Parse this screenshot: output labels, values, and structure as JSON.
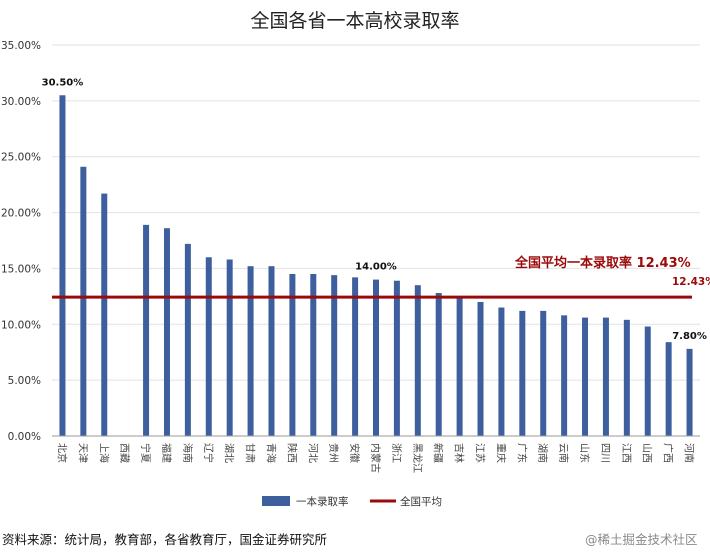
{
  "chart_data": {
    "type": "bar",
    "title": "全国各省一本高校录取率",
    "categories": [
      "北京",
      "天津",
      "上海",
      "西藏",
      "宁夏",
      "福建",
      "海南",
      "辽宁",
      "湖北",
      "甘肃",
      "青海",
      "陕西",
      "河北",
      "贵州",
      "安徽",
      "内蒙古",
      "浙江",
      "黑龙江",
      "新疆",
      "吉林",
      "江苏",
      "重庆",
      "广东",
      "湖南",
      "云南",
      "山东",
      "四川",
      "江西",
      "山西",
      "广西",
      "河南"
    ],
    "series": [
      {
        "name": "一本录取率",
        "color": "#3d5f9e",
        "values": [
          30.5,
          24.1,
          21.7,
          null,
          18.9,
          18.6,
          17.2,
          16.0,
          15.8,
          15.2,
          15.2,
          14.5,
          14.5,
          14.4,
          14.2,
          14.0,
          13.9,
          13.5,
          12.8,
          12.4,
          12.0,
          11.5,
          11.2,
          11.2,
          10.8,
          10.6,
          10.6,
          10.4,
          9.8,
          8.4,
          7.8
        ]
      }
    ],
    "average": {
      "name": "全国平均",
      "value": 12.43,
      "color": "#9b0a0a",
      "label": "12.43%",
      "callout": "全国平均一本录取率 12.43%"
    },
    "data_labels": [
      {
        "category": "北京",
        "text": "30.50%"
      },
      {
        "category": "内蒙古",
        "text": "14.00%"
      },
      {
        "category": "河南",
        "text": "7.80%"
      }
    ],
    "y_ticks": [
      "0.00%",
      "5.00%",
      "10.00%",
      "15.00%",
      "20.00%",
      "25.00%",
      "30.00%",
      "35.00%"
    ],
    "ylim": [
      0,
      35
    ],
    "grid": true,
    "legend": {
      "placement": "bottom",
      "entries": [
        "一本录取率",
        "全国平均"
      ]
    }
  },
  "footer": {
    "source": "资料来源：统计局，教育部，各省教育厅，国金证券研究所",
    "watermark": "@稀土掘金技术社区"
  }
}
